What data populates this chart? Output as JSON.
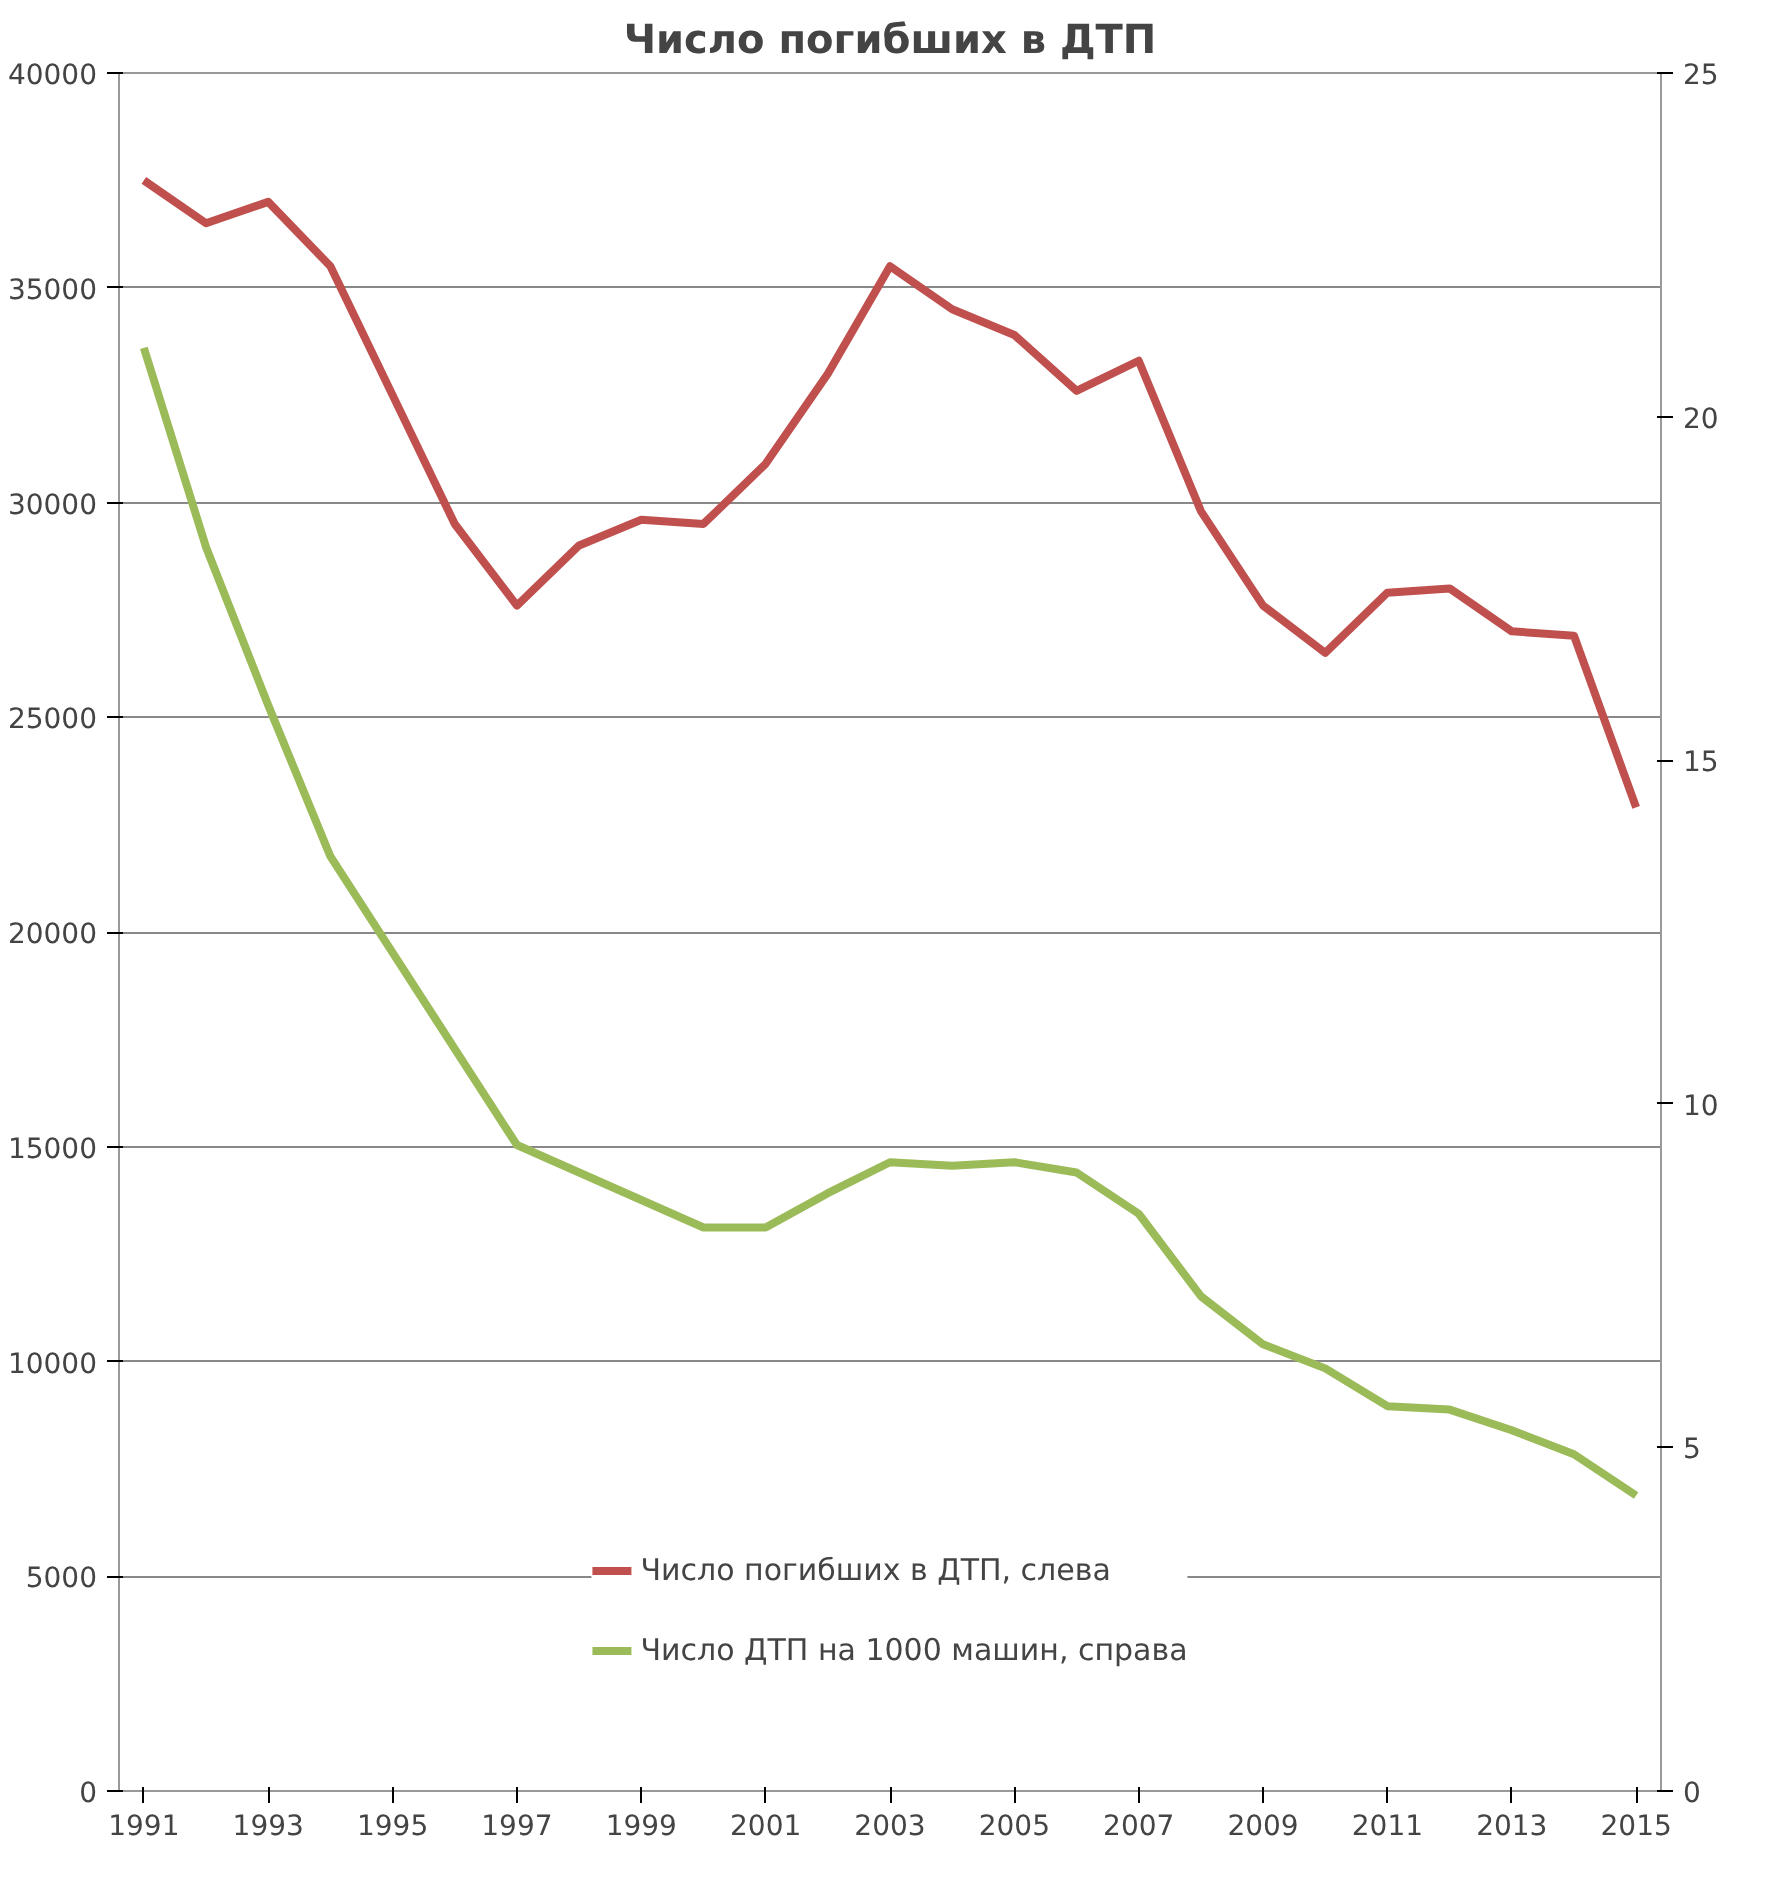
{
  "chart_data": {
    "type": "line",
    "title": "Число погибших в ДТП",
    "x": [
      1991,
      1992,
      1993,
      1994,
      1995,
      1996,
      1997,
      1998,
      1999,
      2000,
      2001,
      2002,
      2003,
      2004,
      2005,
      2006,
      2007,
      2008,
      2009,
      2010,
      2011,
      2012,
      2013,
      2014,
      2015
    ],
    "xlim": [
      1990.6,
      2015.4
    ],
    "xticks": [
      1991,
      1993,
      1995,
      1997,
      1999,
      2001,
      2003,
      2005,
      2007,
      2009,
      2011,
      2013,
      2015
    ],
    "ylim": [
      0,
      40000
    ],
    "yticks": [
      0,
      5000,
      10000,
      15000,
      20000,
      25000,
      30000,
      35000,
      40000
    ],
    "y2lim": [
      0,
      25
    ],
    "y2ticks": [
      0,
      5,
      10,
      15,
      20,
      25
    ],
    "grid": "y",
    "legend": "bottom",
    "marker": "none",
    "line_style": "solid",
    "series": [
      {
        "name": "Число погибших в ДТП, слева",
        "color": "#c0504d",
        "values": [
          37500,
          36500,
          37000,
          35500,
          32500,
          29500,
          27600,
          29000,
          29600,
          29500,
          30900,
          33000,
          35500,
          34500,
          33900,
          32600,
          33300,
          29800,
          27600,
          26500,
          27900,
          28000,
          27000,
          26900,
          22900
        ]
      },
      {
        "name": "Число ДТП на 1000 машин, справа",
        "color": "#9bbb59",
        "axis": "y2",
        "values": [
          21.0,
          18.1,
          15.8,
          13.6,
          12.2,
          10.8,
          9.4,
          9.0,
          8.6,
          8.2,
          8.2,
          8.7,
          9.15,
          9.1,
          9.15,
          9.0,
          8.4,
          7.2,
          6.5,
          6.15,
          5.6,
          5.55,
          5.25,
          4.9,
          4.3
        ]
      }
    ]
  }
}
